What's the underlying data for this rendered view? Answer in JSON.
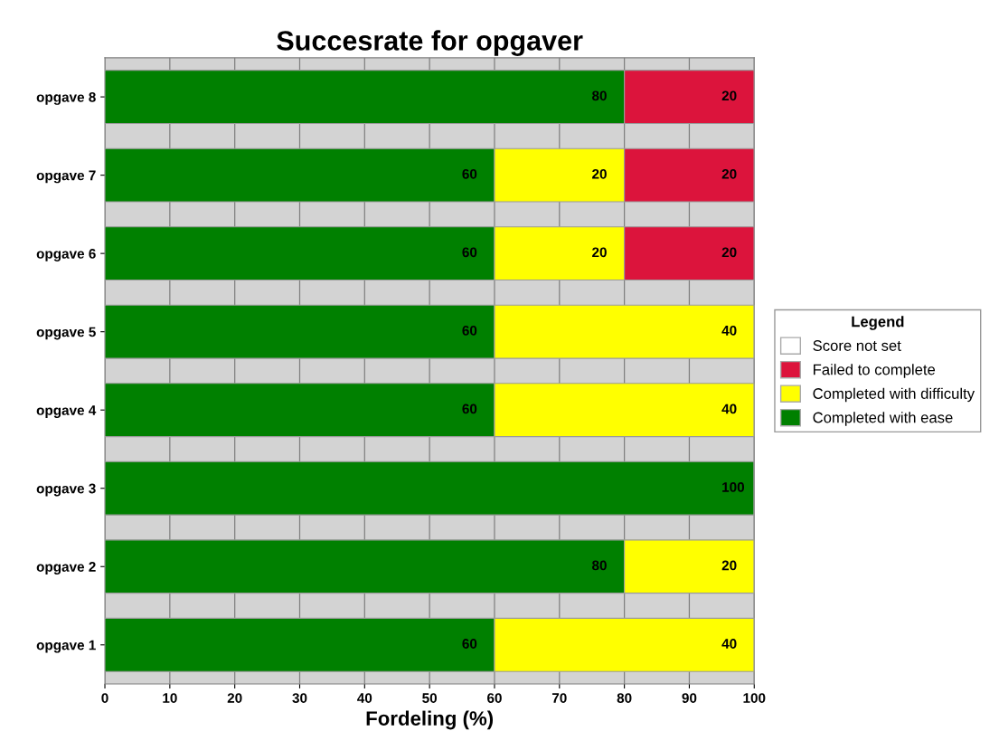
{
  "chart_data": {
    "type": "bar",
    "orientation": "horizontal",
    "stacked": true,
    "title": "Succesrate for opgaver",
    "xlabel": "Fordeling (%)",
    "legend_title": "Legend",
    "categories": [
      "opgave 8",
      "opgave 7",
      "opgave 6",
      "opgave 5",
      "opgave 4",
      "opgave 3",
      "opgave 2",
      "opgave 1"
    ],
    "series": [
      {
        "name": "Completed with ease",
        "color": "#008000",
        "values": [
          80,
          60,
          60,
          60,
          60,
          100,
          80,
          60
        ],
        "value_labels": [
          "80",
          "60",
          "60",
          "60",
          "60",
          "100",
          "80",
          "60"
        ]
      },
      {
        "name": "Completed with difficulty",
        "color": "#ffff00",
        "values": [
          0,
          20,
          20,
          40,
          40,
          0,
          20,
          40
        ],
        "value_labels": [
          null,
          "20",
          "20",
          "40",
          "40",
          null,
          "20",
          "40"
        ]
      },
      {
        "name": "Failed to complete",
        "color": "#dc143c",
        "values": [
          20,
          20,
          20,
          0,
          0,
          0,
          0,
          0
        ],
        "value_labels": [
          "20",
          "20",
          "20",
          null,
          null,
          null,
          null,
          null
        ]
      },
      {
        "name": "Score not set",
        "color": "#ffffff",
        "values": [
          0,
          0,
          0,
          0,
          0,
          0,
          0,
          0
        ]
      }
    ],
    "xlim": [
      0,
      100
    ],
    "xticks": [
      0,
      10,
      20,
      30,
      40,
      50,
      60,
      70,
      80,
      90,
      100
    ],
    "grid": "x",
    "legend": "right"
  }
}
